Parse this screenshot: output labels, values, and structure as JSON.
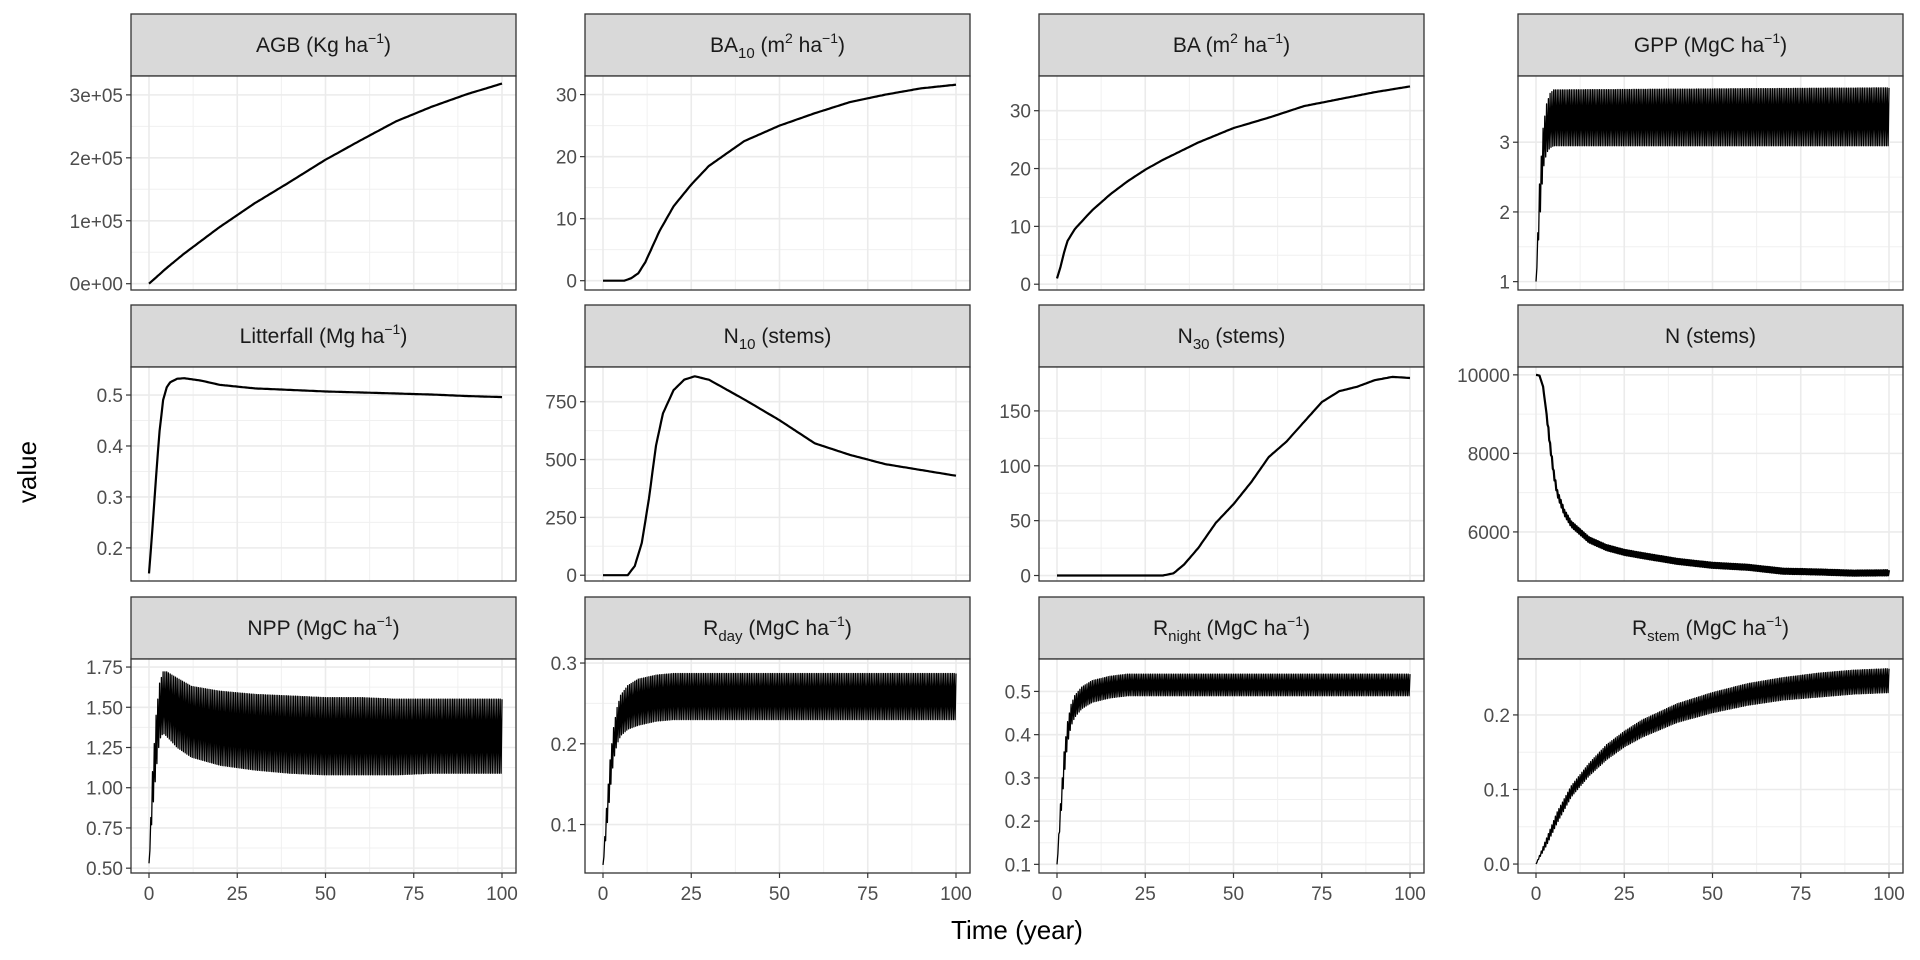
{
  "chart_data": {
    "type": "line",
    "layout": "facet-grid 3x4, free y scales",
    "xlabel": "Time (year)",
    "ylabel": "value",
    "x_ticks": [
      0,
      25,
      50,
      75,
      100
    ],
    "panels": [
      {
        "id": "agb",
        "title": {
          "base": "AGB (Kg ha",
          "sup": "−1",
          "tail": ")"
        },
        "xlim": [
          0,
          100
        ],
        "ylim": [
          -10000,
          330000
        ],
        "y_ticks": [
          0,
          100000,
          200000,
          300000
        ],
        "y_tick_labels": [
          "0e+00",
          "1e+05",
          "2e+05",
          "3e+05"
        ],
        "show_x_axis": false,
        "series": {
          "x": [
            0,
            5,
            10,
            20,
            30,
            40,
            50,
            60,
            70,
            80,
            90,
            100
          ],
          "values": [
            0,
            25000,
            48000,
            90000,
            128000,
            162000,
            197000,
            228000,
            258000,
            281000,
            301000,
            318000
          ]
        }
      },
      {
        "id": "ba10",
        "title": {
          "base": "BA",
          "sub": "10",
          "mid": " (m",
          "sup": "2",
          "tail": " ha",
          "sup2": "−1",
          "tail2": ")"
        },
        "xlim": [
          0,
          100
        ],
        "ylim": [
          -1.5,
          33
        ],
        "y_ticks": [
          0,
          10,
          20,
          30
        ],
        "y_tick_labels": [
          "0",
          "10",
          "20",
          "30"
        ],
        "show_x_axis": false,
        "series": {
          "x": [
            0,
            6,
            8,
            10,
            12,
            14,
            16,
            20,
            25,
            30,
            40,
            50,
            60,
            70,
            80,
            90,
            100
          ],
          "values": [
            0,
            0,
            0.4,
            1.2,
            3.0,
            5.5,
            8.0,
            12.0,
            15.5,
            18.5,
            22.5,
            25.0,
            27.0,
            28.8,
            30.0,
            31.0,
            31.6
          ]
        }
      },
      {
        "id": "ba",
        "title": {
          "base": "BA (m",
          "sup": "2",
          "tail": " ha",
          "sup2": "−1",
          "tail2": ")"
        },
        "xlim": [
          0,
          100
        ],
        "ylim": [
          -1,
          36
        ],
        "y_ticks": [
          0,
          10,
          20,
          30
        ],
        "y_tick_labels": [
          "0",
          "10",
          "20",
          "30"
        ],
        "show_x_axis": false,
        "series": {
          "x": [
            0,
            1,
            2,
            3,
            5,
            8,
            10,
            15,
            20,
            25,
            30,
            40,
            50,
            60,
            70,
            80,
            90,
            100
          ],
          "values": [
            1.0,
            3.0,
            5.5,
            7.5,
            9.5,
            11.5,
            12.8,
            15.5,
            17.8,
            19.8,
            21.5,
            24.5,
            27.0,
            28.8,
            30.8,
            32.0,
            33.2,
            34.2
          ]
        }
      },
      {
        "id": "gpp",
        "title": {
          "base": "GPP (MgC ha",
          "sup": "−1",
          "tail": ")"
        },
        "xlim": [
          0,
          100
        ],
        "ylim": [
          0.88,
          3.95
        ],
        "y_ticks": [
          1,
          2,
          3
        ],
        "y_tick_labels": [
          "1",
          "2",
          "3"
        ],
        "show_x_axis": false,
        "oscillating": true,
        "series": {
          "x": [
            0,
            1,
            2,
            3,
            4,
            5,
            100
          ],
          "upper": [
            1.0,
            2.4,
            3.2,
            3.55,
            3.7,
            3.75,
            3.78
          ],
          "lower": [
            1.0,
            1.8,
            2.6,
            2.85,
            2.92,
            2.95,
            2.95
          ]
        }
      },
      {
        "id": "litterfall",
        "title": {
          "base": "Litterfall (Mg ha",
          "sup": "−1",
          "tail": ")"
        },
        "xlim": [
          0,
          100
        ],
        "ylim": [
          0.135,
          0.555
        ],
        "y_ticks": [
          0.2,
          0.3,
          0.4,
          0.5
        ],
        "y_tick_labels": [
          "0.2",
          "0.3",
          "0.4",
          "0.5"
        ],
        "show_x_axis": false,
        "series": {
          "x": [
            0,
            1,
            2,
            3,
            4,
            5,
            6,
            8,
            10,
            15,
            20,
            30,
            40,
            50,
            60,
            70,
            80,
            90,
            100
          ],
          "values": [
            0.15,
            0.24,
            0.34,
            0.43,
            0.49,
            0.515,
            0.525,
            0.532,
            0.533,
            0.528,
            0.52,
            0.513,
            0.51,
            0.507,
            0.505,
            0.503,
            0.501,
            0.498,
            0.496
          ]
        }
      },
      {
        "id": "n10",
        "title": {
          "base": "N",
          "sub": "10",
          "tail": " (stems)"
        },
        "xlim": [
          0,
          100
        ],
        "ylim": [
          -25,
          900
        ],
        "y_ticks": [
          0,
          250,
          500,
          750
        ],
        "y_tick_labels": [
          "0",
          "250",
          "500",
          "750"
        ],
        "show_x_axis": false,
        "series": {
          "x": [
            0,
            7,
            9,
            11,
            13,
            15,
            17,
            20,
            23,
            26,
            30,
            40,
            50,
            60,
            70,
            80,
            90,
            100
          ],
          "values": [
            0,
            0,
            40,
            140,
            330,
            560,
            700,
            800,
            845,
            860,
            845,
            760,
            670,
            570,
            520,
            480,
            455,
            430
          ]
        }
      },
      {
        "id": "n30",
        "title": {
          "base": "N",
          "sub": "30",
          "tail": " (stems)"
        },
        "xlim": [
          0,
          100
        ],
        "ylim": [
          -5,
          190
        ],
        "y_ticks": [
          0,
          50,
          100,
          150
        ],
        "y_tick_labels": [
          "0",
          "50",
          "100",
          "150"
        ],
        "show_x_axis": false,
        "series": {
          "x": [
            0,
            30,
            33,
            36,
            40,
            45,
            50,
            55,
            60,
            65,
            70,
            75,
            80,
            85,
            90,
            95,
            100
          ],
          "values": [
            0,
            0,
            2,
            10,
            25,
            48,
            65,
            85,
            108,
            122,
            140,
            158,
            168,
            172,
            178,
            181,
            180
          ]
        }
      },
      {
        "id": "n",
        "title": {
          "base": "N (stems)"
        },
        "xlim": [
          0,
          100
        ],
        "ylim": [
          4750,
          10200
        ],
        "y_ticks": [
          6000,
          8000,
          10000
        ],
        "y_tick_labels": [
          "6000",
          "8000",
          "10000"
        ],
        "show_x_axis": false,
        "noisy": true,
        "series": {
          "x": [
            0,
            1,
            2,
            3,
            4,
            5,
            6,
            8,
            10,
            15,
            20,
            25,
            30,
            40,
            50,
            60,
            70,
            80,
            90,
            100
          ],
          "values": [
            10000,
            9980,
            9700,
            9000,
            8200,
            7500,
            7000,
            6500,
            6200,
            5800,
            5600,
            5480,
            5400,
            5250,
            5150,
            5100,
            5000,
            4980,
            4950,
            4960
          ]
        }
      },
      {
        "id": "npp",
        "title": {
          "base": "NPP (MgC ha",
          "sup": "−1",
          "tail": ")"
        },
        "xlim": [
          0,
          100
        ],
        "ylim": [
          0.47,
          1.8
        ],
        "y_ticks": [
          0.5,
          0.75,
          1.0,
          1.25,
          1.5,
          1.75
        ],
        "y_tick_labels": [
          "0.50",
          "0.75",
          "1.00",
          "1.25",
          "1.50",
          "1.75"
        ],
        "show_x_axis": true,
        "oscillating": true,
        "series": {
          "x": [
            0,
            1,
            2,
            3,
            4,
            5,
            8,
            12,
            20,
            30,
            40,
            50,
            60,
            70,
            80,
            100
          ],
          "upper": [
            0.53,
            1.1,
            1.45,
            1.65,
            1.72,
            1.72,
            1.68,
            1.63,
            1.6,
            1.58,
            1.57,
            1.56,
            1.56,
            1.55,
            1.55,
            1.55
          ],
          "lower": [
            0.53,
            0.85,
            1.1,
            1.3,
            1.34,
            1.32,
            1.25,
            1.19,
            1.14,
            1.11,
            1.09,
            1.08,
            1.08,
            1.08,
            1.09,
            1.09
          ]
        }
      },
      {
        "id": "rday",
        "title": {
          "base": "R",
          "sub": "day",
          "mid": " (MgC ha",
          "sup": "−1",
          "tail": ")"
        },
        "xlim": [
          0,
          100
        ],
        "ylim": [
          0.04,
          0.305
        ],
        "y_ticks": [
          0.1,
          0.2,
          0.3
        ],
        "y_tick_labels": [
          "0.1",
          "0.2",
          "0.3"
        ],
        "show_x_axis": true,
        "oscillating": true,
        "series": {
          "x": [
            0,
            1,
            2,
            3,
            4,
            5,
            7,
            10,
            15,
            20,
            100
          ],
          "upper": [
            0.05,
            0.12,
            0.18,
            0.22,
            0.245,
            0.26,
            0.272,
            0.28,
            0.285,
            0.287,
            0.287
          ],
          "lower": [
            0.05,
            0.09,
            0.14,
            0.18,
            0.2,
            0.21,
            0.218,
            0.223,
            0.228,
            0.23,
            0.23
          ]
        }
      },
      {
        "id": "rnight",
        "title": {
          "base": "R",
          "sub": "night",
          "mid": " (MgC ha",
          "sup": "−1",
          "tail": ")"
        },
        "xlim": [
          0,
          100
        ],
        "ylim": [
          0.08,
          0.575
        ],
        "y_ticks": [
          0.1,
          0.2,
          0.3,
          0.4,
          0.5
        ],
        "y_tick_labels": [
          "0.1",
          "0.2",
          "0.3",
          "0.4",
          "0.5"
        ],
        "show_x_axis": true,
        "oscillating": true,
        "series": {
          "x": [
            0,
            1,
            2,
            3,
            4,
            5,
            7,
            10,
            15,
            20,
            100
          ],
          "upper": [
            0.1,
            0.24,
            0.36,
            0.43,
            0.47,
            0.49,
            0.51,
            0.525,
            0.535,
            0.54,
            0.54
          ],
          "lower": [
            0.1,
            0.2,
            0.3,
            0.38,
            0.42,
            0.44,
            0.46,
            0.475,
            0.485,
            0.49,
            0.49
          ]
        }
      },
      {
        "id": "rstem",
        "title": {
          "base": "R",
          "sub": "stem",
          "mid": " (MgC ha",
          "sup": "−1",
          "tail": ")"
        },
        "xlim": [
          0,
          100
        ],
        "ylim": [
          -0.012,
          0.275
        ],
        "y_ticks": [
          0.0,
          0.1,
          0.2
        ],
        "y_tick_labels": [
          "0.0",
          "0.1",
          "0.2"
        ],
        "show_x_axis": true,
        "oscillating": true,
        "series": {
          "x": [
            0,
            3,
            6,
            10,
            15,
            20,
            25,
            30,
            40,
            50,
            60,
            70,
            80,
            90,
            100
          ],
          "upper": [
            0.0,
            0.035,
            0.07,
            0.105,
            0.135,
            0.16,
            0.178,
            0.193,
            0.215,
            0.23,
            0.242,
            0.25,
            0.256,
            0.26,
            0.262
          ],
          "lower": [
            0.0,
            0.025,
            0.055,
            0.09,
            0.118,
            0.14,
            0.157,
            0.17,
            0.19,
            0.203,
            0.213,
            0.22,
            0.224,
            0.228,
            0.23
          ]
        }
      }
    ]
  }
}
